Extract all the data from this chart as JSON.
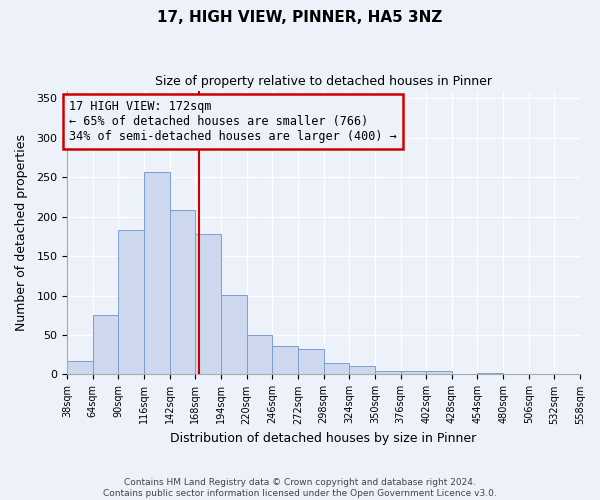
{
  "title": "17, HIGH VIEW, PINNER, HA5 3NZ",
  "subtitle": "Size of property relative to detached houses in Pinner",
  "xlabel": "Distribution of detached houses by size in Pinner",
  "ylabel": "Number of detached properties",
  "bar_color": "#cdd8ee",
  "bar_edge_color": "#7a9fd4",
  "bins": [
    38,
    64,
    90,
    116,
    142,
    168,
    194,
    220,
    246,
    272,
    298,
    324,
    350,
    376,
    402,
    428,
    454,
    480,
    506,
    532,
    558
  ],
  "values": [
    17,
    76,
    183,
    257,
    209,
    178,
    101,
    50,
    36,
    32,
    14,
    11,
    5,
    5,
    4,
    1,
    2,
    1,
    0,
    1
  ],
  "vline_x": 172,
  "vline_color": "#cc0000",
  "annotation_line1": "17 HIGH VIEW: 172sqm",
  "annotation_line2": "← 65% of detached houses are smaller (766)",
  "annotation_line3": "34% of semi-detached houses are larger (400) →",
  "annotation_box_color": "#cc0000",
  "ylim": [
    0,
    360
  ],
  "yticks": [
    0,
    50,
    100,
    150,
    200,
    250,
    300,
    350
  ],
  "footnote": "Contains HM Land Registry data © Crown copyright and database right 2024.\nContains public sector information licensed under the Open Government Licence v3.0.",
  "background_color": "#edf1f9"
}
